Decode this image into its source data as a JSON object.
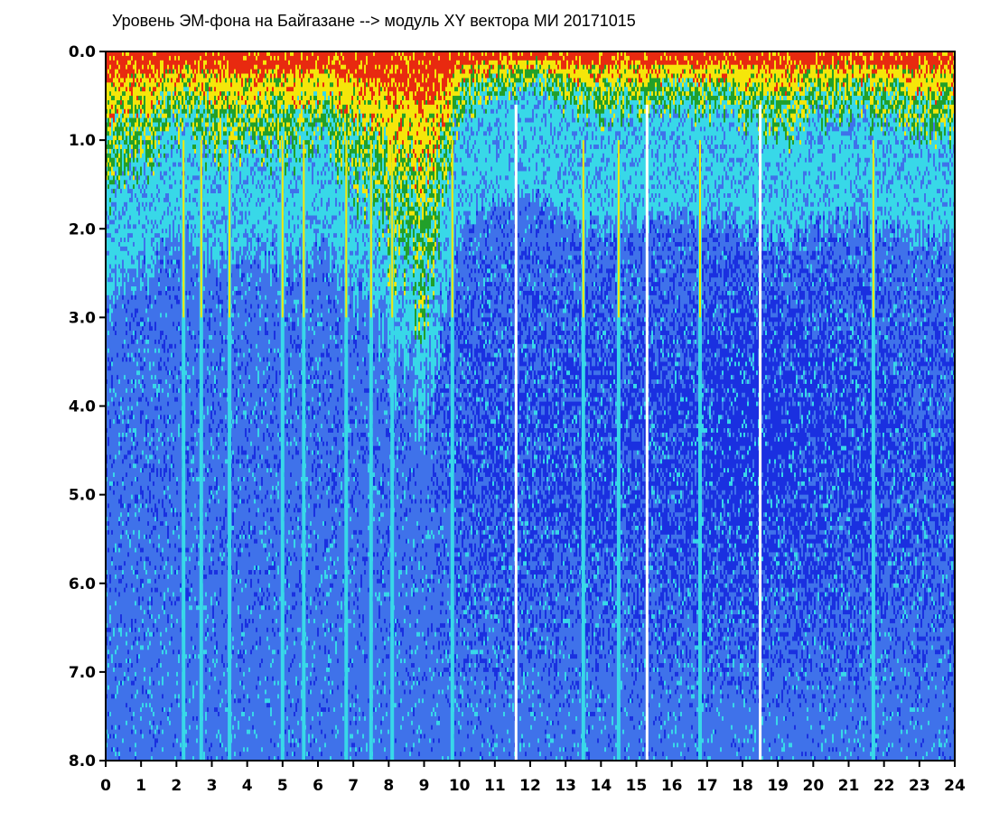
{
  "chart_data": {
    "type": "heatmap",
    "title": "Уровень ЭМ-фона на Байгазане   -->  модуль XY вектора МИ  20171015",
    "xlabel": "",
    "ylabel": "",
    "xlim": [
      0,
      24
    ],
    "ylim": [
      0,
      8
    ],
    "y_inverted": true,
    "grid": false,
    "x_ticks": [
      "0",
      "1",
      "2",
      "3",
      "4",
      "5",
      "6",
      "7",
      "8",
      "9",
      "10",
      "11",
      "12",
      "13",
      "14",
      "15",
      "16",
      "17",
      "18",
      "19",
      "20",
      "21",
      "22",
      "23",
      "24"
    ],
    "y_ticks": [
      "0.0",
      "1.0",
      "2.0",
      "3.0",
      "4.0",
      "5.0",
      "6.0",
      "7.0",
      "8.0"
    ],
    "colors": {
      "background": "#ffffff",
      "axis": "#000000",
      "low": "#1a30e0",
      "low_mid": "#3f72ea",
      "mid": "#38d8e8",
      "mid_high": "#22a02a",
      "high": "#f5e60a",
      "highest": "#e82a10"
    },
    "upper_band_depth": [
      {
        "x": 0.0,
        "depth": 1.5
      },
      {
        "x": 1.0,
        "depth": 1.3
      },
      {
        "x": 2.0,
        "depth": 0.9
      },
      {
        "x": 3.0,
        "depth": 1.1
      },
      {
        "x": 4.0,
        "depth": 1.1
      },
      {
        "x": 5.0,
        "depth": 1.2
      },
      {
        "x": 6.0,
        "depth": 1.0
      },
      {
        "x": 7.0,
        "depth": 1.5
      },
      {
        "x": 8.0,
        "depth": 2.2
      },
      {
        "x": 9.0,
        "depth": 2.8
      },
      {
        "x": 9.5,
        "depth": 1.8
      },
      {
        "x": 10.0,
        "depth": 0.7
      },
      {
        "x": 11.0,
        "depth": 0.5
      },
      {
        "x": 12.0,
        "depth": 0.4
      },
      {
        "x": 13.0,
        "depth": 0.6
      },
      {
        "x": 14.0,
        "depth": 0.8
      },
      {
        "x": 15.0,
        "depth": 0.7
      },
      {
        "x": 16.0,
        "depth": 0.6
      },
      {
        "x": 17.0,
        "depth": 0.7
      },
      {
        "x": 18.0,
        "depth": 0.8
      },
      {
        "x": 19.0,
        "depth": 1.0
      },
      {
        "x": 20.0,
        "depth": 0.8
      },
      {
        "x": 21.0,
        "depth": 0.7
      },
      {
        "x": 22.0,
        "depth": 0.8
      },
      {
        "x": 23.0,
        "depth": 0.9
      },
      {
        "x": 24.0,
        "depth": 1.0
      }
    ],
    "dark_region_strength": [
      {
        "x": 0.0,
        "v": 0.1
      },
      {
        "x": 3.0,
        "v": 0.12
      },
      {
        "x": 6.0,
        "v": 0.12
      },
      {
        "x": 9.0,
        "v": 0.08
      },
      {
        "x": 10.0,
        "v": 0.45
      },
      {
        "x": 12.0,
        "v": 0.55
      },
      {
        "x": 14.0,
        "v": 0.55
      },
      {
        "x": 16.0,
        "v": 0.6
      },
      {
        "x": 18.0,
        "v": 0.9
      },
      {
        "x": 20.0,
        "v": 0.7
      },
      {
        "x": 22.0,
        "v": 0.55
      },
      {
        "x": 24.0,
        "v": 0.4
      }
    ],
    "vertical_streaks": [
      {
        "x": 2.2,
        "kind": "bright"
      },
      {
        "x": 2.7,
        "kind": "bright"
      },
      {
        "x": 3.5,
        "kind": "bright"
      },
      {
        "x": 5.0,
        "kind": "bright"
      },
      {
        "x": 5.6,
        "kind": "bright"
      },
      {
        "x": 6.8,
        "kind": "bright"
      },
      {
        "x": 7.5,
        "kind": "bright"
      },
      {
        "x": 8.1,
        "kind": "bright"
      },
      {
        "x": 9.8,
        "kind": "bright"
      },
      {
        "x": 11.6,
        "kind": "white"
      },
      {
        "x": 13.5,
        "kind": "bright"
      },
      {
        "x": 14.5,
        "kind": "bright"
      },
      {
        "x": 15.3,
        "kind": "white"
      },
      {
        "x": 16.8,
        "kind": "bright"
      },
      {
        "x": 18.5,
        "kind": "white"
      },
      {
        "x": 21.7,
        "kind": "bright"
      }
    ]
  }
}
